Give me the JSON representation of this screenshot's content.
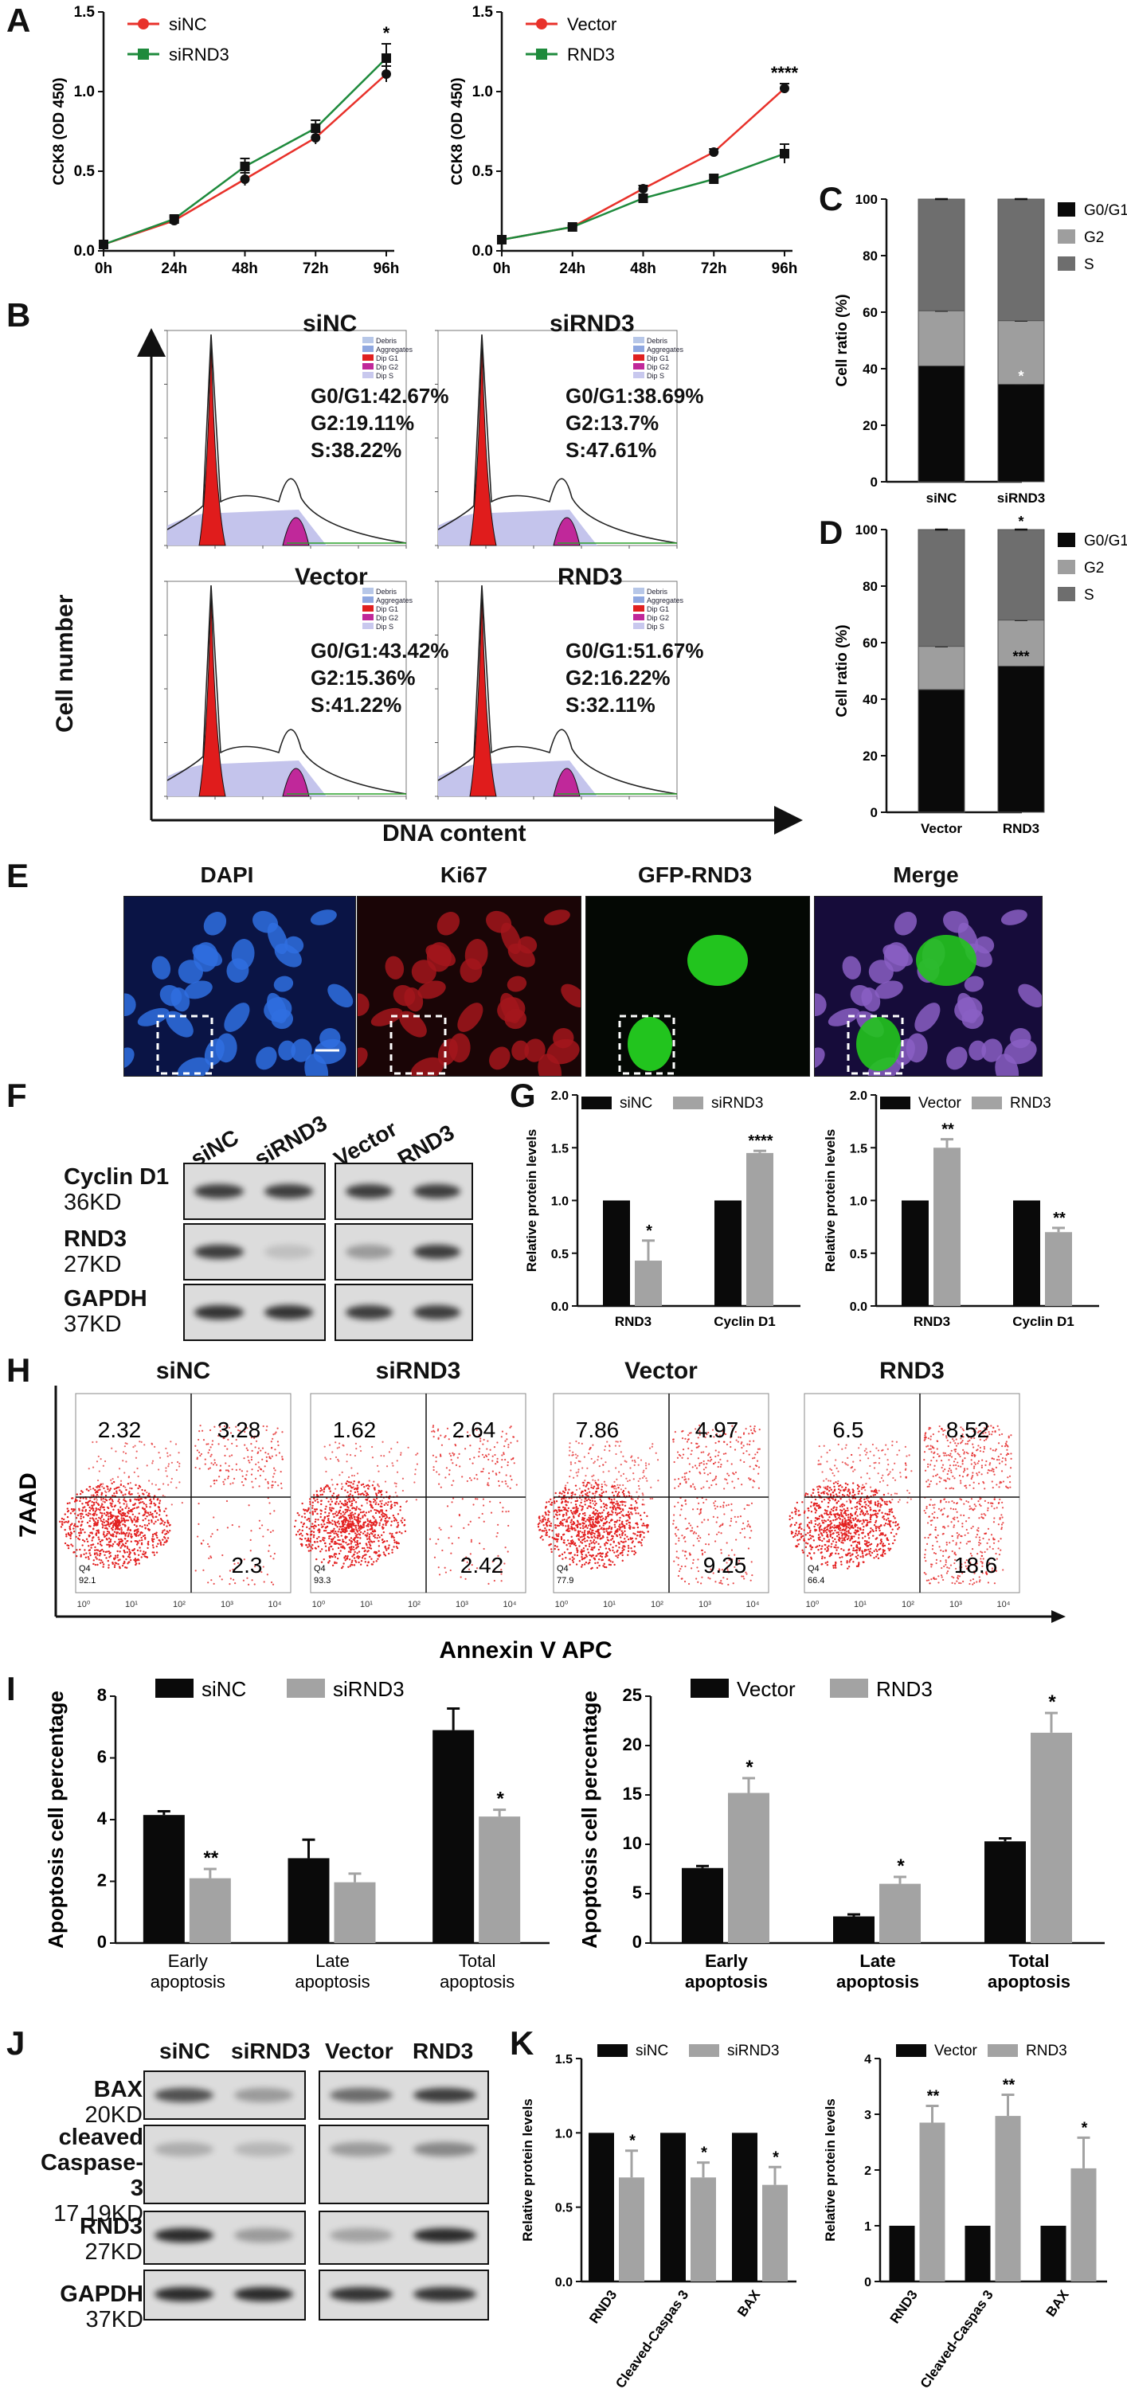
{
  "panel_labels": {
    "A": "A",
    "B": "B",
    "C": "C",
    "D": "D",
    "E": "E",
    "F": "F",
    "G": "G",
    "H": "H",
    "I": "I",
    "J": "J",
    "K": "K"
  },
  "chart_data": [
    {
      "id": "A1",
      "type": "line",
      "ylabel": "CCK8 (OD 450)",
      "categories": [
        "0h",
        "24h",
        "48h",
        "72h",
        "96h"
      ],
      "ylim": [
        0,
        1.5
      ],
      "yticks": [
        "0.0",
        "0.5",
        "1.0",
        "1.5"
      ],
      "legend_position": "top-left",
      "series": [
        {
          "name": "siNC",
          "color": "#e8312a",
          "marker": "circle",
          "values": [
            0.04,
            0.19,
            0.45,
            0.71,
            1.11
          ],
          "errors": [
            0.01,
            0.02,
            0.04,
            0.04,
            0.05
          ]
        },
        {
          "name": "siRND3",
          "color": "#1e8a3c",
          "marker": "square",
          "values": [
            0.04,
            0.2,
            0.53,
            0.77,
            1.21
          ],
          "errors": [
            0.01,
            0.02,
            0.05,
            0.05,
            0.09
          ]
        }
      ],
      "annotations": [
        {
          "category": "96h",
          "text": "*"
        }
      ]
    },
    {
      "id": "A2",
      "type": "line",
      "ylabel": "CCK8 (OD 450)",
      "categories": [
        "0h",
        "24h",
        "48h",
        "72h",
        "96h"
      ],
      "ylim": [
        0,
        1.5
      ],
      "yticks": [
        "0.0",
        "0.5",
        "1.0",
        "1.5"
      ],
      "legend_position": "top-left",
      "series": [
        {
          "name": "Vector",
          "color": "#e8312a",
          "marker": "circle",
          "values": [
            0.07,
            0.15,
            0.39,
            0.62,
            1.02
          ],
          "errors": [
            0.01,
            0.01,
            0.02,
            0.02,
            0.03
          ]
        },
        {
          "name": "RND3",
          "color": "#1e8a3c",
          "marker": "square",
          "values": [
            0.07,
            0.15,
            0.33,
            0.45,
            0.61
          ],
          "errors": [
            0.01,
            0.01,
            0.02,
            0.03,
            0.06
          ]
        }
      ],
      "annotations": [
        {
          "category": "96h",
          "text": "****"
        }
      ]
    },
    {
      "id": "C",
      "type": "bar",
      "stacked": true,
      "ylabel": "Cell ratio (%)",
      "categories": [
        "siNC",
        "siRND3"
      ],
      "ylim": [
        0,
        100
      ],
      "yticks": [
        "0",
        "20",
        "40",
        "60",
        "80",
        "100"
      ],
      "legend_position": "right",
      "series": [
        {
          "name": "G0/G1",
          "color": "#0a0a0a",
          "values": [
            41,
            34.5
          ]
        },
        {
          "name": "G2",
          "color": "#9e9e9e",
          "values": [
            19.5,
            22.5
          ]
        },
        {
          "name": "S",
          "color": "#6e6e6e",
          "values": [
            39.5,
            43
          ]
        }
      ],
      "annotations": [
        {
          "category": "siRND3",
          "text": "*"
        }
      ]
    },
    {
      "id": "D",
      "type": "bar",
      "stacked": true,
      "ylabel": "Cell ratio (%)",
      "categories": [
        "Vector",
        "RND3"
      ],
      "ylim": [
        0,
        100
      ],
      "yticks": [
        "0",
        "20",
        "40",
        "60",
        "80",
        "100"
      ],
      "legend_position": "right",
      "series": [
        {
          "name": "G0/G1",
          "color": "#0a0a0a",
          "values": [
            43.4,
            51.7
          ]
        },
        {
          "name": "G2",
          "color": "#9e9e9e",
          "values": [
            15.3,
            16.3
          ]
        },
        {
          "name": "S",
          "color": "#6e6e6e",
          "values": [
            41.3,
            32
          ]
        }
      ],
      "annotations": [
        {
          "category": "RND3",
          "text": "***"
        },
        {
          "category": "RND3",
          "text": "*"
        }
      ]
    },
    {
      "id": "G1",
      "type": "bar",
      "ylabel": "Relative protein levels",
      "categories": [
        "RND3",
        "Cyclin D1"
      ],
      "ylim": [
        0,
        2.0
      ],
      "yticks": [
        "0.0",
        "0.5",
        "1.0",
        "1.5",
        "2.0"
      ],
      "legend_position": "top",
      "series": [
        {
          "name": "siNC",
          "color": "#0a0a0a",
          "values": [
            1,
            1
          ],
          "errors": [
            0,
            0
          ]
        },
        {
          "name": "siRND3",
          "color": "#a3a3a3",
          "values": [
            0.43,
            1.45
          ],
          "errors": [
            0.19,
            0.02
          ]
        }
      ],
      "annotations": [
        {
          "text": "*"
        },
        {
          "text": "****"
        }
      ]
    },
    {
      "id": "G2",
      "type": "bar",
      "ylabel": "Relative protein levels",
      "categories": [
        "RND3",
        "Cyclin D1"
      ],
      "ylim": [
        0,
        2.0
      ],
      "yticks": [
        "0.0",
        "0.5",
        "1.0",
        "1.5",
        "2.0"
      ],
      "legend_position": "top",
      "series": [
        {
          "name": "Vector",
          "color": "#0a0a0a",
          "values": [
            1,
            1
          ],
          "errors": [
            0,
            0
          ]
        },
        {
          "name": "RND3",
          "color": "#a3a3a3",
          "values": [
            1.5,
            0.7
          ],
          "errors": [
            0.08,
            0.04
          ]
        }
      ],
      "annotations": [
        {
          "text": "**"
        },
        {
          "text": "**"
        }
      ]
    },
    {
      "id": "I1",
      "type": "bar",
      "ylabel": "Apoptosis cell percentage",
      "categories": [
        "Early\napoptosis",
        "Late\napoptosis",
        "Total\napoptosis"
      ],
      "ylim": [
        0,
        8
      ],
      "yticks": [
        "0",
        "2",
        "4",
        "6",
        "8"
      ],
      "legend_position": "top",
      "series": [
        {
          "name": "siNC",
          "color": "#0a0a0a",
          "values": [
            4.15,
            2.75,
            6.9
          ],
          "errors": [
            0.12,
            0.6,
            0.7
          ]
        },
        {
          "name": "siRND3",
          "color": "#a3a3a3",
          "values": [
            2.1,
            1.97,
            4.1
          ],
          "errors": [
            0.3,
            0.28,
            0.22
          ]
        }
      ],
      "annotations": [
        {
          "text": "**"
        },
        {
          "text": ""
        },
        {
          "text": "*"
        }
      ]
    },
    {
      "id": "I2",
      "type": "bar",
      "ylabel": "Apoptosis cell percentage",
      "categories": [
        "Early\napoptosis",
        "Late\napoptosis",
        "Total\napoptosis"
      ],
      "ylim": [
        0,
        25
      ],
      "yticks": [
        "0",
        "5",
        "10",
        "15",
        "20",
        "25"
      ],
      "legend_position": "top",
      "series": [
        {
          "name": "Vector",
          "color": "#0a0a0a",
          "values": [
            7.6,
            2.7,
            10.3
          ],
          "errors": [
            0.2,
            0.2,
            0.3
          ]
        },
        {
          "name": "RND3",
          "color": "#a3a3a3",
          "values": [
            15.2,
            6.0,
            21.3
          ],
          "errors": [
            1.5,
            0.7,
            2.0
          ]
        }
      ],
      "annotations": [
        {
          "text": "*"
        },
        {
          "text": "*"
        },
        {
          "text": "*"
        }
      ]
    },
    {
      "id": "K1",
      "type": "bar",
      "ylabel": "Relative protein levels",
      "categories": [
        "RND3",
        "Cleaved-Caspas 3",
        "BAX"
      ],
      "ylim": [
        0,
        1.5
      ],
      "yticks": [
        "0.0",
        "0.5",
        "1.0",
        "1.5"
      ],
      "legend_position": "top",
      "series": [
        {
          "name": "siNC",
          "color": "#0a0a0a",
          "values": [
            1,
            1,
            1
          ],
          "errors": [
            0,
            0,
            0
          ]
        },
        {
          "name": "siRND3",
          "color": "#a3a3a3",
          "values": [
            0.7,
            0.7,
            0.65
          ],
          "errors": [
            0.18,
            0.1,
            0.12
          ]
        }
      ],
      "annotations": [
        {
          "text": "*"
        },
        {
          "text": "*"
        },
        {
          "text": "*"
        }
      ]
    },
    {
      "id": "K2",
      "type": "bar",
      "ylabel": "Relative protein levels",
      "categories": [
        "RND3",
        "Cleaved-Caspas 3",
        "BAX"
      ],
      "ylim": [
        0,
        4
      ],
      "yticks": [
        "0",
        "1",
        "2",
        "3",
        "4"
      ],
      "legend_position": "top",
      "series": [
        {
          "name": "Vector",
          "color": "#0a0a0a",
          "values": [
            1,
            1,
            1
          ],
          "errors": [
            0,
            0,
            0
          ]
        },
        {
          "name": "RND3",
          "color": "#a3a3a3",
          "values": [
            2.85,
            2.97,
            2.03
          ],
          "errors": [
            0.3,
            0.38,
            0.55
          ]
        }
      ],
      "annotations": [
        {
          "text": "**"
        },
        {
          "text": "**"
        },
        {
          "text": "*"
        }
      ]
    }
  ],
  "cell_cycle": {
    "ylabel": "Cell number",
    "xlabel": "DNA content",
    "legend_items": [
      "Debris",
      "Aggregates",
      "Dip G1",
      "Dip G2",
      "Dip S"
    ],
    "plots": [
      {
        "title": "siNC",
        "g0g1": "G0/G1:42.67%",
        "g2": "G2:19.11%",
        "s": "S:38.22%"
      },
      {
        "title": "siRND3",
        "g0g1": "G0/G1:38.69%",
        "g2": "G2:13.7%",
        "s": "S:47.61%"
      },
      {
        "title": "Vector",
        "g0g1": "G0/G1:43.42%",
        "g2": "G2:15.36%",
        "s": "S:41.22%"
      },
      {
        "title": "RND3",
        "g0g1": "G0/G1:51.67%",
        "g2": "G2:16.22%",
        "s": "S:32.11%"
      }
    ]
  },
  "immunofluorescence": {
    "titles": [
      "DAPI",
      "Ki67",
      "GFP-RND3",
      "Merge"
    ]
  },
  "western_F": {
    "columns": [
      "siNC",
      "siRND3",
      "Vector",
      "RND3"
    ],
    "rows": [
      {
        "name": "Cyclin D1",
        "size": "36KD"
      },
      {
        "name": "RND3",
        "size": "27KD"
      },
      {
        "name": "GAPDH",
        "size": "37KD"
      }
    ]
  },
  "flow_H": {
    "ylabel": "7AAD",
    "xlabel": "Annexin V  APC",
    "x_ticks": [
      "10⁰",
      "10¹",
      "10²",
      "10³",
      "10⁴"
    ],
    "plots": [
      {
        "title": "siNC",
        "ul": "2.32",
        "ur": "3.28",
        "lr": "2.3",
        "q4": "Q4",
        "q4val": "92.1"
      },
      {
        "title": "siRND3",
        "ul": "1.62",
        "ur": "2.64",
        "lr": "2.42",
        "q4": "Q4",
        "q4val": "93.3"
      },
      {
        "title": "Vector",
        "ul": "7.86",
        "ur": "4.97",
        "lr": "9.25",
        "q4": "Q4",
        "q4val": "77.9"
      },
      {
        "title": "RND3",
        "ul": "6.5",
        "ur": "8.52",
        "lr": "18.6",
        "q4": "Q4",
        "q4val": "66.4"
      }
    ]
  },
  "western_J": {
    "columns": [
      "siNC",
      "siRND3",
      "Vector",
      "RND3"
    ],
    "rows": [
      {
        "name": "BAX",
        "size": "20KD"
      },
      {
        "name": "cleaved\nCaspase-3",
        "size": "17,19KD"
      },
      {
        "name": "RND3",
        "size": "27KD"
      },
      {
        "name": "GAPDH",
        "size": "37KD"
      }
    ]
  },
  "colors": {
    "red": "#e8312a",
    "green": "#1e8a3c",
    "black": "#0a0a0a",
    "grey": "#a3a3a3"
  }
}
